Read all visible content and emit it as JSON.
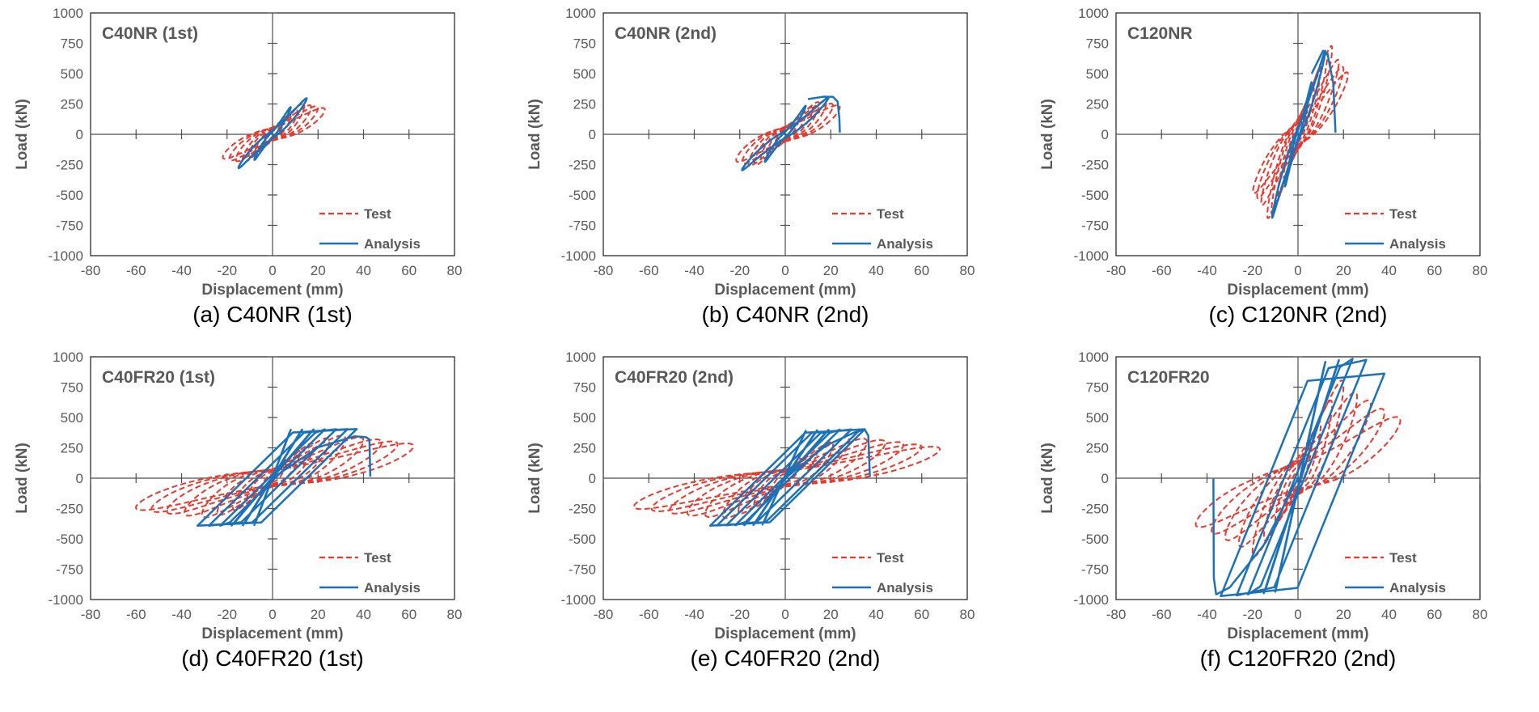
{
  "page": {
    "background": "#ffffff"
  },
  "colors": {
    "test": "#E8392F",
    "analysis": "#1B72B8",
    "axis": "#4d4d4d",
    "border": "#1a1a1a",
    "label": "#595959",
    "caption": "#000000"
  },
  "legend": {
    "test_label": "Test",
    "analysis_label": "Analysis",
    "position": "lower-right-inside"
  },
  "axes": {
    "xlabel": "Displacement (mm)",
    "ylabel": "Load (kN)",
    "xlim": [
      -80,
      80
    ],
    "xstep": 20,
    "ylim": [
      -1000,
      1000
    ],
    "ystep": 250,
    "grid": false,
    "tick_style": "crosshair-center-axes"
  },
  "chart_data": [
    {
      "type": "line",
      "title": "C40NR (1st)",
      "caption": "(a) C40NR (1st)",
      "xlabel": "Displacement (mm)",
      "ylabel": "Load (kN)",
      "xlim": [
        -80,
        80
      ],
      "ylim": [
        -1000,
        1000
      ],
      "series": [
        {
          "name": "Test",
          "color": "#E8392F",
          "dash": true,
          "model": "spindle",
          "delta": 0.45,
          "pinch": 0.5,
          "neg_load_factor": 0.93,
          "neg_amp_factor": 0.95,
          "cycles": [
            [
              3,
              85
            ],
            [
              5,
              125
            ],
            [
              8,
              165
            ],
            [
              11,
              205
            ],
            [
              14,
              262
            ],
            [
              17,
              248
            ],
            [
              20,
              240
            ],
            [
              23,
              225
            ]
          ]
        },
        {
          "name": "Analysis",
          "color": "#1B72B8",
          "dash": false,
          "model": "spindle",
          "delta": 0.16,
          "pinch": 0.7,
          "neg_load_factor": 0.94,
          "neg_amp_factor": 1.0,
          "cycles": [
            [
              8,
              225
            ],
            [
              15,
              298
            ]
          ]
        }
      ]
    },
    {
      "type": "line",
      "title": "C40NR (2nd)",
      "caption": "(b) C40NR (2nd)",
      "xlabel": "Displacement (mm)",
      "ylabel": "Load (kN)",
      "xlim": [
        -80,
        80
      ],
      "ylim": [
        -1000,
        1000
      ],
      "series": [
        {
          "name": "Test",
          "color": "#E8392F",
          "dash": true,
          "model": "spindle",
          "delta": 0.45,
          "pinch": 0.5,
          "neg_load_factor": 0.95,
          "neg_amp_factor": 0.9,
          "cycles": [
            [
              3,
              90
            ],
            [
              6,
              140
            ],
            [
              9,
              185
            ],
            [
              12,
              230
            ],
            [
              15,
              275
            ],
            [
              18,
              282
            ],
            [
              21,
              262
            ],
            [
              24,
              248
            ]
          ]
        },
        {
          "name": "Analysis",
          "color": "#1B72B8",
          "dash": false,
          "model": "spindle",
          "delta": 0.14,
          "pinch": 0.7,
          "neg_load_factor": 0.97,
          "neg_amp_factor": 1.0,
          "cycles": [
            [
              9,
              235
            ],
            [
              19,
              305
            ]
          ],
          "tail": [
            [
              10,
              290
            ],
            [
              17,
              310
            ],
            [
              21,
              308
            ],
            [
              23,
              270
            ],
            [
              23.8,
              130
            ],
            [
              24,
              15
            ]
          ]
        }
      ]
    },
    {
      "type": "line",
      "title": "C120NR",
      "caption": "(c) C120NR (2nd)",
      "xlabel": "Displacement (mm)",
      "ylabel": "Load (kN)",
      "xlim": [
        -80,
        80
      ],
      "ylim": [
        -1000,
        1000
      ],
      "series": [
        {
          "name": "Test",
          "color": "#E8392F",
          "dash": true,
          "model": "spindle",
          "delta": 0.32,
          "pinch": 0.55,
          "neg_load_factor": 0.95,
          "neg_amp_factor": 0.9,
          "cycles": [
            [
              4,
              210
            ],
            [
              7,
              390
            ],
            [
              10,
              565
            ],
            [
              13,
              705
            ],
            [
              15,
              740
            ],
            [
              18,
              625
            ],
            [
              20,
              565
            ],
            [
              22,
              520
            ]
          ]
        },
        {
          "name": "Analysis",
          "color": "#1B72B8",
          "dash": false,
          "model": "spindle",
          "delta": 0.11,
          "pinch": 0.72,
          "neg_load_factor": 1.0,
          "neg_amp_factor": 0.95,
          "cycles": [
            [
              6,
              430
            ],
            [
              12,
              688
            ]
          ],
          "tail": [
            [
              6,
              500
            ],
            [
              11,
              688
            ],
            [
              13,
              660
            ],
            [
              15.5,
              420
            ],
            [
              16.5,
              15
            ]
          ]
        }
      ]
    },
    {
      "type": "line",
      "title": "C40FR20 (1st)",
      "caption": "(d) C40FR20 (1st)",
      "xlabel": "Displacement (mm)",
      "ylabel": "Load (kN)",
      "xlim": [
        -80,
        80
      ],
      "ylim": [
        -1000,
        1000
      ],
      "series": [
        {
          "name": "Test",
          "color": "#E8392F",
          "dash": true,
          "model": "spindle",
          "delta": 0.5,
          "pinch": 0.42,
          "neg_load_factor": 0.92,
          "neg_amp_factor": 0.97,
          "cycles": [
            [
              6,
              160
            ],
            [
              12,
              240
            ],
            [
              18,
              300
            ],
            [
              25,
              345
            ],
            [
              32,
              368
            ],
            [
              40,
              352
            ],
            [
              48,
              335
            ],
            [
              55,
              318
            ],
            [
              62,
              300
            ]
          ]
        },
        {
          "name": "Analysis",
          "color": "#1B72B8",
          "dash": false,
          "model": "parallelogram",
          "k": 19,
          "cycles": [
            [
              8,
              398,
              8,
              385
            ],
            [
              13,
              400,
              13,
              388
            ],
            [
              18,
              401,
              18,
              390
            ],
            [
              23,
              402,
              23,
              391
            ],
            [
              28,
              403,
              28,
              391
            ],
            [
              33,
              404,
              33,
              392
            ],
            [
              37,
              405,
              33,
              392
            ]
          ],
          "tail": [
            [
              0,
              0
            ],
            [
              20,
              255
            ],
            [
              36,
              345
            ],
            [
              41,
              338
            ],
            [
              42.6,
              320
            ],
            [
              43,
              12
            ]
          ]
        }
      ]
    },
    {
      "type": "line",
      "title": "C40FR20 (2nd)",
      "caption": "(e) C40FR20 (2nd)",
      "xlabel": "Displacement (mm)",
      "ylabel": "Load (kN)",
      "xlim": [
        -80,
        80
      ],
      "ylim": [
        -1000,
        1000
      ],
      "series": [
        {
          "name": "Test",
          "color": "#E8392F",
          "dash": true,
          "model": "spindle",
          "delta": 0.5,
          "pinch": 0.42,
          "neg_load_factor": 0.98,
          "neg_amp_factor": 0.98,
          "cycles": [
            [
              7,
              170
            ],
            [
              14,
              252
            ],
            [
              21,
              312
            ],
            [
              28,
              352
            ],
            [
              36,
              342
            ],
            [
              44,
              330
            ],
            [
              52,
              312
            ],
            [
              60,
              292
            ],
            [
              68,
              272
            ]
          ]
        },
        {
          "name": "Analysis",
          "color": "#1B72B8",
          "dash": false,
          "model": "parallelogram",
          "k": 19,
          "cycles": [
            [
              9,
              390,
              10,
              382
            ],
            [
              14,
              395,
              14,
              385
            ],
            [
              19,
              398,
              18,
              387
            ],
            [
              24,
              400,
              22,
              388
            ],
            [
              29,
              401,
              26,
              389
            ],
            [
              33,
              402,
              30,
              390
            ],
            [
              35,
              403,
              33,
              391
            ]
          ],
          "tail": [
            [
              0,
              0
            ],
            [
              18,
              270
            ],
            [
              31,
              382
            ],
            [
              35,
              398
            ],
            [
              36.5,
              350
            ],
            [
              37.2,
              15
            ]
          ]
        }
      ]
    },
    {
      "type": "line",
      "title": "C120FR20",
      "caption": "(f) C120FR20 (2nd)",
      "xlabel": "Displacement (mm)",
      "ylabel": "Load (kN)",
      "xlim": [
        -80,
        80
      ],
      "ylim": [
        -1000,
        1000
      ],
      "series": [
        {
          "name": "Test",
          "color": "#E8392F",
          "dash": true,
          "model": "spindle",
          "delta": 0.42,
          "pinch": 0.5,
          "neg_load_factor": 0.8,
          "neg_amp_factor": 1.0,
          "cycles": [
            [
              6,
              300
            ],
            [
              10,
              480
            ],
            [
              15,
              660
            ],
            [
              20,
              830
            ],
            [
              26,
              730
            ],
            [
              32,
              660
            ],
            [
              38,
              590
            ],
            [
              45,
              520
            ]
          ]
        },
        {
          "name": "Analysis",
          "color": "#1B72B8",
          "dash": false,
          "model": "parallelogram",
          "k": 48,
          "cycles": [
            [
              12,
              958,
              10,
              935
            ],
            [
              18,
              972,
              15,
              948
            ],
            [
              24,
              984,
              22,
              958
            ],
            [
              30,
              975,
              27,
              966
            ],
            [
              38,
              862,
              34,
              972
            ]
          ],
          "tail": [
            [
              0,
              0
            ],
            [
              -15,
              -550
            ],
            [
              -30,
              -900
            ],
            [
              -36,
              -958
            ],
            [
              -37,
              -820
            ],
            [
              -37.2,
              -5
            ]
          ]
        }
      ]
    }
  ]
}
